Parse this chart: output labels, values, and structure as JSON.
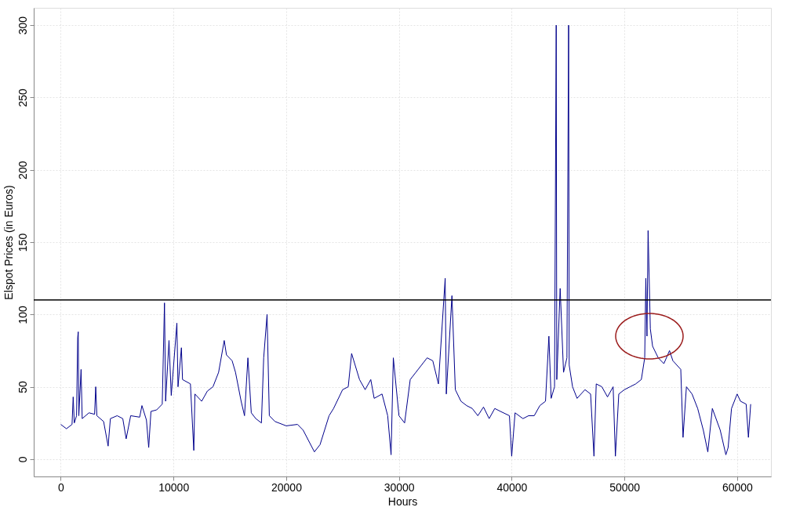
{
  "chart_data": {
    "type": "line",
    "xlabel": "Hours",
    "ylabel": "Elspot Prices (in Euros)",
    "xlim": [
      -2400,
      63000
    ],
    "xticks": [
      0,
      10000,
      20000,
      30000,
      40000,
      50000,
      60000
    ],
    "ylim": [
      -12,
      312
    ],
    "yticks": [
      0,
      50,
      100,
      150,
      200,
      250,
      300
    ],
    "grid": true,
    "marker": "none",
    "line_style": "solid",
    "ref_lines": [
      {
        "axis": "y",
        "value": 110,
        "color": "#000000",
        "line_style": "solid"
      }
    ],
    "series": [
      {
        "color": "#00008b",
        "x": [
          0,
          500,
          1000,
          1100,
          1200,
          1400,
          1500,
          1550,
          1600,
          1800,
          1900,
          2500,
          3000,
          3100,
          3200,
          3800,
          4200,
          4400,
          5000,
          5500,
          5800,
          6200,
          7000,
          7200,
          7600,
          7800,
          8000,
          8500,
          9000,
          9200,
          9300,
          9600,
          9800,
          10300,
          10400,
          10700,
          10800,
          11500,
          11800,
          11900,
          12500,
          13000,
          13500,
          14000,
          14500,
          14700,
          15200,
          15500,
          16000,
          16300,
          16600,
          16900,
          17300,
          17800,
          18000,
          18300,
          18500,
          19000,
          20000,
          21000,
          21500,
          22500,
          23000,
          23800,
          24200,
          25000,
          25500,
          25800,
          26500,
          27000,
          27500,
          27800,
          28500,
          29000,
          29300,
          29500,
          30000,
          30500,
          31000,
          31500,
          32500,
          33000,
          33500,
          34100,
          34200,
          34700,
          35000,
          35500,
          36000,
          36500,
          37000,
          37500,
          38000,
          38500,
          39000,
          39800,
          40000,
          40300,
          41000,
          41500,
          42000,
          42500,
          43000,
          43300,
          43500,
          43800,
          43950,
          44000,
          44300,
          44600,
          44900,
          45050,
          45100,
          45400,
          45800,
          46500,
          47000,
          47300,
          47500,
          48000,
          48500,
          49000,
          49200,
          49500,
          50000,
          50500,
          51000,
          51500,
          51800,
          51900,
          52000,
          52100,
          52300,
          52500,
          53000,
          53500,
          54000,
          54300,
          55000,
          55200,
          55500,
          56000,
          56500,
          57000,
          57400,
          57800,
          58500,
          59000,
          59200,
          59500,
          60000,
          60300,
          60800,
          61000,
          61200
        ],
        "values": [
          24,
          21,
          24,
          43,
          25,
          30,
          84,
          88,
          30,
          62,
          28,
          32,
          31,
          50,
          30,
          26,
          9,
          28,
          30,
          28,
          14,
          30,
          29,
          37,
          27,
          8,
          33,
          34,
          38,
          108,
          40,
          82,
          44,
          94,
          50,
          77,
          55,
          52,
          6,
          45,
          40,
          47,
          50,
          60,
          82,
          72,
          68,
          60,
          40,
          30,
          70,
          32,
          28,
          25,
          70,
          100,
          30,
          26,
          23,
          24,
          20,
          5,
          10,
          30,
          35,
          48,
          50,
          73,
          55,
          48,
          55,
          42,
          45,
          30,
          3,
          70,
          30,
          25,
          55,
          60,
          70,
          68,
          52,
          125,
          45,
          113,
          48,
          40,
          37,
          35,
          30,
          36,
          28,
          35,
          33,
          30,
          2,
          32,
          28,
          30,
          30,
          37,
          40,
          85,
          42,
          50,
          300,
          55,
          118,
          60,
          70,
          300,
          65,
          50,
          42,
          48,
          45,
          2,
          52,
          50,
          43,
          50,
          2,
          45,
          48,
          50,
          52,
          55,
          70,
          125,
          85,
          158,
          90,
          78,
          70,
          66,
          75,
          68,
          62,
          15,
          50,
          45,
          35,
          20,
          5,
          35,
          20,
          3,
          8,
          35,
          45,
          40,
          38,
          15,
          38
        ]
      }
    ]
  }
}
